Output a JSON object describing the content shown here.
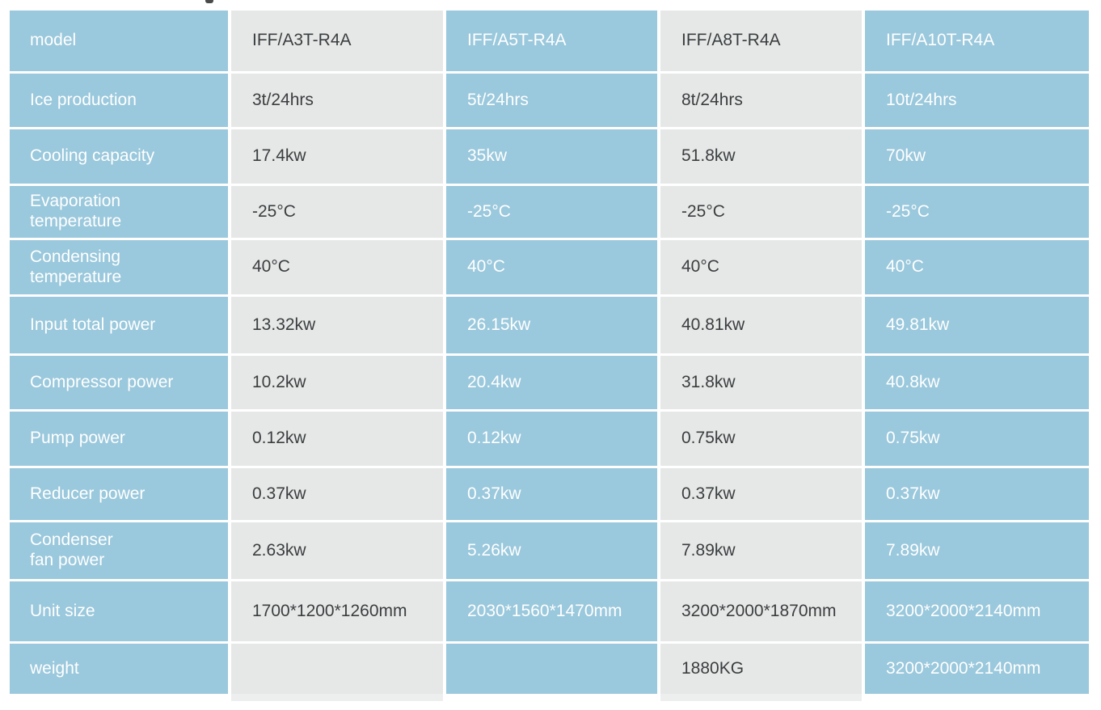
{
  "page": {
    "background": "#ffffff"
  },
  "colors": {
    "column_blue": "#9ac8dc",
    "column_gray": "#e6e8e7",
    "text_dark": "#3b3e40",
    "text_light": "#ffffff"
  },
  "table": {
    "models": [
      "IFF/A3T-R4A",
      "IFF/A5T-R4A",
      "IFF/A8T-R4A",
      "IFF/A10T-R4A"
    ],
    "rows": [
      {
        "label": "model",
        "values": [
          "IFF/A3T-R4A",
          "IFF/A5T-R4A",
          "IFF/A8T-R4A",
          "IFF/A10T-R4A"
        ]
      },
      {
        "label": "Ice production",
        "values": [
          "3t/24hrs",
          "5t/24hrs",
          "8t/24hrs",
          "10t/24hrs"
        ]
      },
      {
        "label": "Cooling capacity",
        "values": [
          "17.4kw",
          "35kw",
          "51.8kw",
          "70kw"
        ]
      },
      {
        "label": "Evaporation\ntemperature",
        "values": [
          "-25°C",
          "-25°C",
          "-25°C",
          "-25°C"
        ]
      },
      {
        "label": "Condensing\ntemperature",
        "values": [
          "40°C",
          "40°C",
          "40°C",
          "40°C"
        ]
      },
      {
        "label": "Input total power",
        "values": [
          "13.32kw",
          "26.15kw",
          "40.81kw",
          "49.81kw"
        ]
      },
      {
        "label": "Compressor power",
        "values": [
          "10.2kw",
          "20.4kw",
          "31.8kw",
          "40.8kw"
        ]
      },
      {
        "label": "Pump power",
        "values": [
          "0.12kw",
          "0.12kw",
          "0.75kw",
          "0.75kw"
        ]
      },
      {
        "label": "Reducer power",
        "values": [
          "0.37kw",
          "0.37kw",
          "0.37kw",
          "0.37kw"
        ]
      },
      {
        "label": "Condenser\nfan power",
        "values": [
          "2.63kw",
          "5.26kw",
          "7.89kw",
          "7.89kw"
        ]
      },
      {
        "label": "Unit size",
        "values": [
          "1700*1200*1260mm",
          "2030*1560*1470mm",
          "3200*2000*1870mm",
          "3200*2000*2140mm"
        ]
      },
      {
        "label": "weight",
        "values": [
          "",
          "",
          "1880KG",
          "3200*2000*2140mm"
        ]
      }
    ]
  }
}
